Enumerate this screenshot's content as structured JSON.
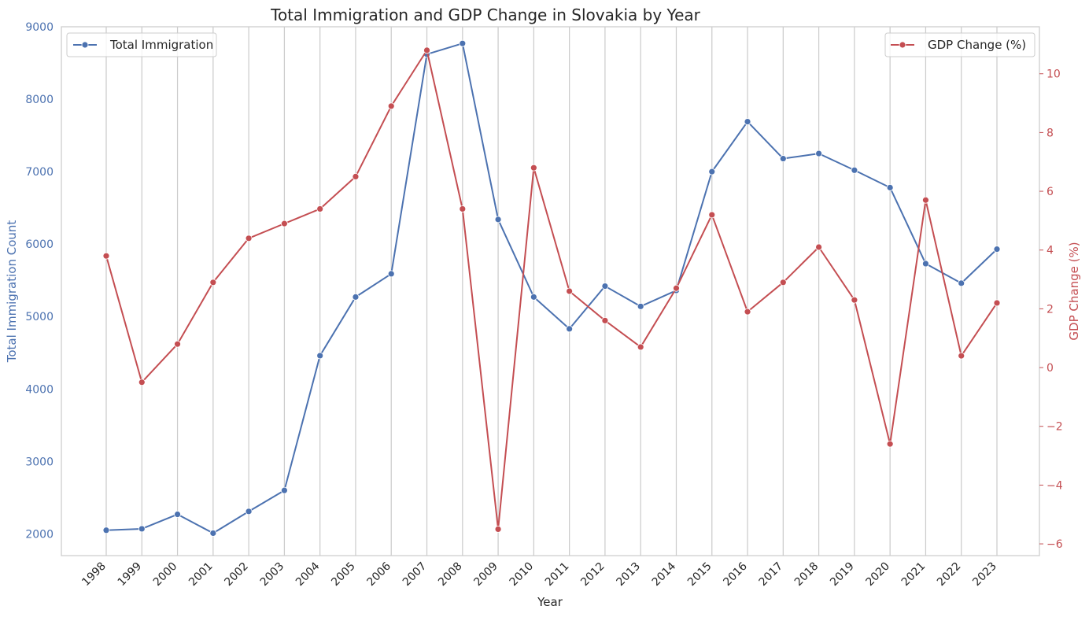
{
  "chart_data": {
    "type": "line",
    "title": "Total Immigration and GDP Change in Slovakia by Year",
    "xlabel": "Year",
    "x": [
      1998,
      1999,
      2000,
      2001,
      2002,
      2003,
      2004,
      2005,
      2006,
      2007,
      2008,
      2009,
      2010,
      2011,
      2012,
      2013,
      2014,
      2015,
      2016,
      2017,
      2018,
      2019,
      2020,
      2021,
      2022,
      2023
    ],
    "x_tick_labels": [
      "1998",
      "1999",
      "2000",
      "2001",
      "2002",
      "2003",
      "2004",
      "2005",
      "2006",
      "2007",
      "2008",
      "2009",
      "2010",
      "2011",
      "2012",
      "2013",
      "2014",
      "2015",
      "2016",
      "2017",
      "2018",
      "2019",
      "2020",
      "2021",
      "2022",
      "2023"
    ],
    "y_left": {
      "label": "Total Immigration Count",
      "ylim": [
        1700,
        9000
      ],
      "ticks": [
        2000,
        3000,
        4000,
        5000,
        6000,
        7000,
        8000,
        9000
      ],
      "color": "#4c72b0"
    },
    "y_right": {
      "label": "GDP Change (%)",
      "ylim": [
        -6.4,
        11.6
      ],
      "ticks": [
        -6,
        -4,
        -2,
        0,
        2,
        4,
        6,
        8,
        10
      ],
      "tick_labels": [
        "−6",
        "−4",
        "−2",
        "0",
        "2",
        "4",
        "6",
        "8",
        "10"
      ],
      "color": "#c44e52"
    },
    "series": [
      {
        "name": "Total Immigration",
        "axis": "left",
        "color": "#4c72b0",
        "values": [
          2050,
          2070,
          2270,
          2010,
          2310,
          2600,
          4460,
          5270,
          5590,
          8620,
          8770,
          6340,
          5270,
          4830,
          5420,
          5140,
          5360,
          7000,
          7690,
          7180,
          7250,
          7020,
          6780,
          5730,
          5460,
          5930
        ]
      },
      {
        "name": "GDP Change (%)",
        "axis": "right",
        "color": "#c44e52",
        "values": [
          3.8,
          -0.5,
          0.8,
          2.9,
          4.4,
          4.9,
          5.4,
          6.5,
          8.9,
          10.8,
          5.4,
          -5.5,
          6.8,
          2.6,
          1.6,
          0.7,
          2.7,
          5.2,
          1.9,
          2.9,
          4.1,
          2.3,
          -2.6,
          5.7,
          0.4,
          2.2
        ]
      }
    ],
    "grid": "vertical",
    "legend_left_placement": "top-left",
    "legend_right_placement": "top-right"
  }
}
